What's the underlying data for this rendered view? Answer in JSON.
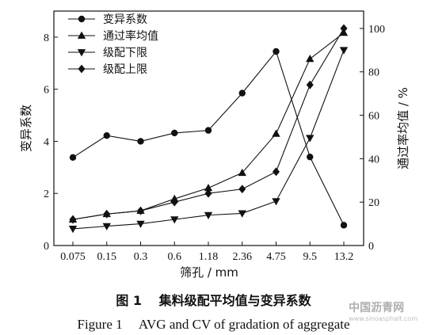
{
  "chart_data": {
    "type": "line",
    "categories": [
      "0.075",
      "0.15",
      "0.3",
      "0.6",
      "1.18",
      "2.36",
      "4.75",
      "9.5",
      "13.2"
    ],
    "xlabel": "筛孔 / mm",
    "ylabel_left": "变异系数",
    "ylabel_right": "通过率均值 / %",
    "ylim_left": [
      0,
      9
    ],
    "ylim_right": [
      0,
      108
    ],
    "yticks_left": [
      "0",
      "2",
      "4",
      "6",
      "8"
    ],
    "yticks_right": [
      "0",
      "20",
      "40",
      "60",
      "80",
      "100"
    ],
    "legend_position": "top-left",
    "series": [
      {
        "name": "变异系数",
        "axis": "left",
        "marker": "circle",
        "values": [
          3.38,
          4.22,
          4.0,
          4.32,
          4.42,
          5.85,
          7.45,
          3.4,
          0.78
        ]
      },
      {
        "name": "通过率均值",
        "axis": "right",
        "marker": "triangle-up",
        "values": [
          12,
          14.5,
          16,
          21.5,
          26.5,
          33.5,
          51.5,
          86,
          98
        ]
      },
      {
        "name": "级配下限",
        "axis": "right",
        "marker": "triangle-down",
        "values": [
          7.7,
          8.9,
          10,
          12,
          14,
          14.8,
          20.4,
          49.5,
          90
        ]
      },
      {
        "name": "级配上限",
        "axis": "right",
        "marker": "diamond",
        "values": [
          12,
          14.5,
          16,
          20,
          24,
          26,
          34,
          74,
          100
        ]
      }
    ]
  },
  "caption": {
    "zh": "图 1　 集料级配平均值与变异系数",
    "en": "Figure 1　 AVG and CV of gradation of aggregate"
  },
  "watermark": {
    "text": "中国沥青网",
    "url": "www.sinoasphalt.com"
  }
}
